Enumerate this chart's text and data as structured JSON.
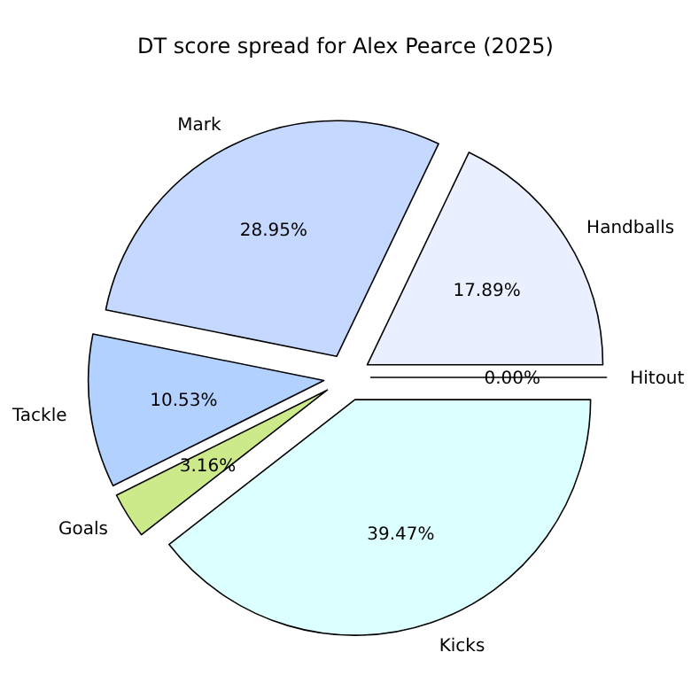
{
  "chart_data": {
    "type": "pie",
    "title": "DT score spread for Alex Pearce (2025)",
    "categories": [
      "Hitout",
      "Handballs",
      "Mark",
      "Tackle",
      "Goals",
      "Kicks"
    ],
    "values": [
      0,
      17.89,
      28.95,
      10.53,
      3.16,
      39.47
    ],
    "value_labels": [
      "0.00%",
      "17.89%",
      "28.95%",
      "10.53%",
      "3.16%",
      "39.47%"
    ],
    "colors": [
      "#c8e6ff",
      "#eaf0ff",
      "#c5d8ff",
      "#b3d1ff",
      "#cdea8a",
      "#dcffff"
    ]
  }
}
